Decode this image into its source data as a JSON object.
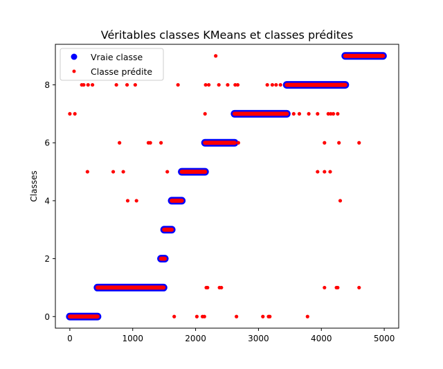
{
  "chart_data": {
    "type": "scatter",
    "title": "Véritables classes KMeans et classes prédites",
    "xlabel": "",
    "ylabel": "Classes",
    "xlim": [
      -230,
      5230
    ],
    "ylim": [
      -0.4,
      9.4
    ],
    "xticks": [
      0,
      1000,
      2000,
      3000,
      4000,
      5000
    ],
    "yticks": [
      0,
      2,
      4,
      6,
      8
    ],
    "grid": false,
    "legend_position": "top-left",
    "true_class_segments": [
      {
        "class": 0,
        "x_start": 0,
        "x_end": 440
      },
      {
        "class": 1,
        "x_start": 440,
        "x_end": 1490
      },
      {
        "class": 2,
        "x_start": 1450,
        "x_end": 1510
      },
      {
        "class": 3,
        "x_start": 1500,
        "x_end": 1620
      },
      {
        "class": 4,
        "x_start": 1620,
        "x_end": 1780
      },
      {
        "class": 5,
        "x_start": 1780,
        "x_end": 2150
      },
      {
        "class": 6,
        "x_start": 2150,
        "x_end": 2620
      },
      {
        "class": 7,
        "x_start": 2620,
        "x_end": 3450
      },
      {
        "class": 8,
        "x_start": 3450,
        "x_end": 4380
      },
      {
        "class": 9,
        "x_start": 4380,
        "x_end": 4980
      }
    ],
    "series": [
      {
        "name": "Vraie classe",
        "color": "#0000ff",
        "marker": "large-circle"
      },
      {
        "name": "Classe prédite",
        "color": "#ff0000",
        "marker": "small-circle"
      }
    ],
    "predicted_outliers": [
      {
        "x": 2320,
        "y": 9
      },
      {
        "x": 190,
        "y": 8
      },
      {
        "x": 220,
        "y": 8
      },
      {
        "x": 290,
        "y": 8
      },
      {
        "x": 360,
        "y": 8
      },
      {
        "x": 740,
        "y": 8
      },
      {
        "x": 910,
        "y": 8
      },
      {
        "x": 1040,
        "y": 8
      },
      {
        "x": 1720,
        "y": 8
      },
      {
        "x": 2160,
        "y": 8
      },
      {
        "x": 2210,
        "y": 8
      },
      {
        "x": 2370,
        "y": 8
      },
      {
        "x": 2510,
        "y": 8
      },
      {
        "x": 2630,
        "y": 8
      },
      {
        "x": 2670,
        "y": 8
      },
      {
        "x": 3140,
        "y": 8
      },
      {
        "x": 3220,
        "y": 8
      },
      {
        "x": 3280,
        "y": 8
      },
      {
        "x": 3350,
        "y": 8
      },
      {
        "x": 0,
        "y": 7
      },
      {
        "x": 80,
        "y": 7
      },
      {
        "x": 2150,
        "y": 7
      },
      {
        "x": 3560,
        "y": 7
      },
      {
        "x": 3650,
        "y": 7
      },
      {
        "x": 3800,
        "y": 7
      },
      {
        "x": 3940,
        "y": 7
      },
      {
        "x": 4110,
        "y": 7
      },
      {
        "x": 4150,
        "y": 7
      },
      {
        "x": 4190,
        "y": 7
      },
      {
        "x": 4260,
        "y": 7
      },
      {
        "x": 790,
        "y": 6
      },
      {
        "x": 1250,
        "y": 6
      },
      {
        "x": 1280,
        "y": 6
      },
      {
        "x": 1450,
        "y": 6
      },
      {
        "x": 2680,
        "y": 6
      },
      {
        "x": 4050,
        "y": 6
      },
      {
        "x": 4280,
        "y": 6
      },
      {
        "x": 4600,
        "y": 6
      },
      {
        "x": 280,
        "y": 5
      },
      {
        "x": 690,
        "y": 5
      },
      {
        "x": 850,
        "y": 5
      },
      {
        "x": 1550,
        "y": 5
      },
      {
        "x": 3940,
        "y": 5
      },
      {
        "x": 4050,
        "y": 5
      },
      {
        "x": 4140,
        "y": 5
      },
      {
        "x": 920,
        "y": 4
      },
      {
        "x": 1060,
        "y": 4
      },
      {
        "x": 4300,
        "y": 4
      },
      {
        "x": 2170,
        "y": 1
      },
      {
        "x": 2190,
        "y": 1
      },
      {
        "x": 2380,
        "y": 1
      },
      {
        "x": 2410,
        "y": 1
      },
      {
        "x": 4050,
        "y": 1
      },
      {
        "x": 4240,
        "y": 1
      },
      {
        "x": 4260,
        "y": 1
      },
      {
        "x": 4600,
        "y": 1
      },
      {
        "x": 1660,
        "y": 0
      },
      {
        "x": 2020,
        "y": 0
      },
      {
        "x": 2110,
        "y": 0
      },
      {
        "x": 2140,
        "y": 0
      },
      {
        "x": 2650,
        "y": 0
      },
      {
        "x": 3070,
        "y": 0
      },
      {
        "x": 3160,
        "y": 0
      },
      {
        "x": 3180,
        "y": 0
      },
      {
        "x": 3780,
        "y": 0
      }
    ]
  }
}
